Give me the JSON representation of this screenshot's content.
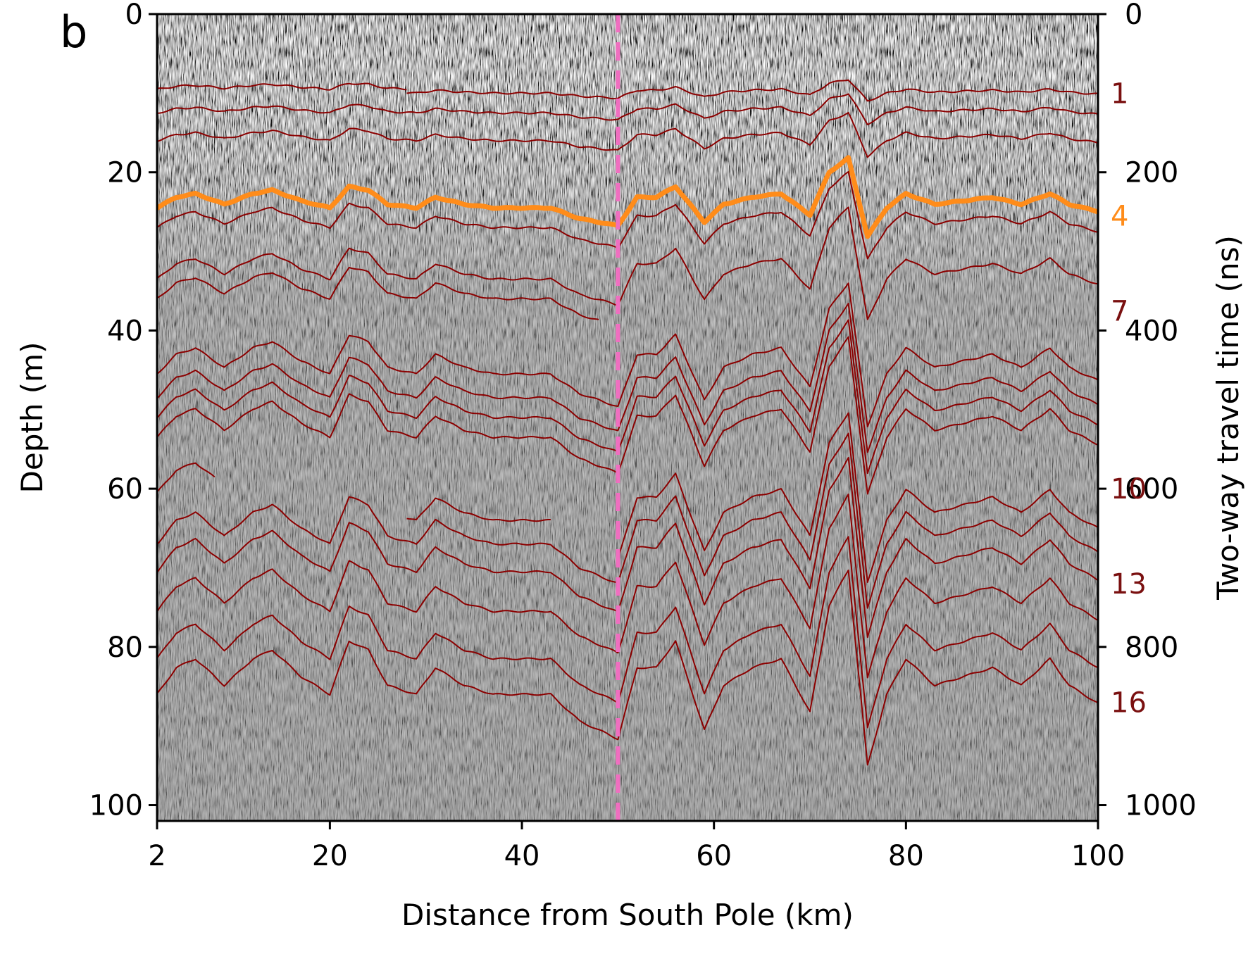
{
  "chart_data": {
    "type": "line",
    "panel_label": "b",
    "xlabel": "Distance from South Pole (km)",
    "ylabel": "Depth (m)",
    "y2label": "Two-way travel time (ns)",
    "xlim": [
      2,
      100
    ],
    "ylim": [
      102,
      0
    ],
    "y2lim": [
      1020,
      0
    ],
    "x_ticks": [
      2,
      20,
      40,
      60,
      80,
      100
    ],
    "x_tick_labels": [
      "2",
      "20",
      "40",
      "60",
      "80",
      "100"
    ],
    "y_ticks": [
      0,
      20,
      40,
      60,
      80,
      100
    ],
    "y_tick_labels": [
      "0",
      "20",
      "40",
      "60",
      "80",
      "100"
    ],
    "y2_ticks": [
      0,
      200,
      400,
      600,
      800,
      1000
    ],
    "y2_tick_labels": [
      "0",
      "200",
      "400",
      "600",
      "800",
      "1000"
    ],
    "background": "radargram",
    "vertical_line": {
      "x": 50,
      "style": "dashed",
      "color": "#f06ec0"
    },
    "colors": {
      "horizon": "#8b0000",
      "highlight": "#ff8c1a",
      "label_dark": "#7a1010"
    },
    "horizon_labels": [
      {
        "text": "1",
        "y": 10,
        "color": "#7a1010"
      },
      {
        "text": "4",
        "y": 25.5,
        "color": "#ff8c1a"
      },
      {
        "text": "7",
        "y": 37.5,
        "color": "#7a1010"
      },
      {
        "text": "10",
        "y": 60,
        "color": "#7a1010"
      },
      {
        "text": "13",
        "y": 72,
        "color": "#7a1010"
      },
      {
        "text": "16",
        "y": 87,
        "color": "#7a1010"
      }
    ],
    "shape_profile": {
      "x": [
        2,
        4,
        6,
        9,
        12,
        14,
        17,
        20,
        22,
        24,
        26,
        29,
        31,
        34,
        37,
        40,
        43,
        46,
        48,
        50,
        52,
        54,
        56,
        59,
        61,
        64,
        67,
        70,
        72,
        74,
        76,
        78,
        80,
        83,
        86,
        89,
        92,
        95,
        97,
        100
      ],
      "offset": [
        0,
        -1.5,
        -2,
        -0.5,
        -2,
        -2.5,
        -1,
        0,
        -3,
        -2.5,
        -0.5,
        0,
        -1.5,
        -0.5,
        0,
        0,
        0,
        1.5,
        2,
        2.5,
        -1.5,
        -1.5,
        -3,
        2,
        -0.5,
        -1.5,
        -2,
        1,
        -5,
        -7,
        4,
        0,
        -2,
        -0.5,
        -1,
        -1.5,
        -0.5,
        -2,
        -0.5,
        0.5
      ]
    },
    "series": [
      {
        "baseline": 9.5,
        "amp": 0.25,
        "x_range": [
          2,
          28
        ],
        "width": 2
      },
      {
        "baseline": 10,
        "amp": 0.25,
        "x_range": [
          28,
          100
        ],
        "width": 2
      },
      {
        "baseline": 12.5,
        "amp": 0.35,
        "x_range": [
          2,
          100
        ],
        "width": 2
      },
      {
        "baseline": 16,
        "amp": 0.5,
        "x_range": [
          2,
          100
        ],
        "width": 2
      },
      {
        "baseline": 24.5,
        "amp": 0.9,
        "x_range": [
          2,
          100
        ],
        "width": 7,
        "highlight": true
      },
      {
        "baseline": 27,
        "amp": 1.0,
        "x_range": [
          2,
          100
        ],
        "width": 2
      },
      {
        "baseline": 33.5,
        "amp": 1.3,
        "x_range": [
          2,
          100
        ],
        "width": 2
      },
      {
        "baseline": 36,
        "amp": 1.35,
        "x_range": [
          2,
          48
        ],
        "width": 2
      },
      {
        "baseline": 45.5,
        "amp": 1.65,
        "x_range": [
          2,
          100
        ],
        "width": 2
      },
      {
        "baseline": 48.5,
        "amp": 1.7,
        "x_range": [
          2,
          100
        ],
        "width": 2
      },
      {
        "baseline": 51,
        "amp": 1.75,
        "x_range": [
          2,
          100
        ],
        "width": 2
      },
      {
        "baseline": 53.5,
        "amp": 1.8,
        "x_range": [
          2,
          100
        ],
        "width": 2
      },
      {
        "baseline": 60.5,
        "amp": 1.9,
        "x_range": [
          2,
          8
        ],
        "width": 2
      },
      {
        "baseline": 64,
        "amp": 1.9,
        "x_range": [
          28,
          43
        ],
        "width": 2
      },
      {
        "baseline": 64,
        "amp": 1.95,
        "x_range": [
          50,
          100
        ],
        "width": 2
      },
      {
        "baseline": 67,
        "amp": 2.0,
        "x_range": [
          2,
          100
        ],
        "width": 2
      },
      {
        "baseline": 70.5,
        "amp": 2.05,
        "x_range": [
          2,
          100
        ],
        "width": 2
      },
      {
        "baseline": 75.5,
        "amp": 2.1,
        "x_range": [
          2,
          100
        ],
        "width": 2
      },
      {
        "baseline": 81.5,
        "amp": 2.2,
        "x_range": [
          2,
          100
        ],
        "width": 2
      },
      {
        "baseline": 86,
        "amp": 2.25,
        "x_range": [
          2,
          100
        ],
        "width": 2
      }
    ]
  }
}
